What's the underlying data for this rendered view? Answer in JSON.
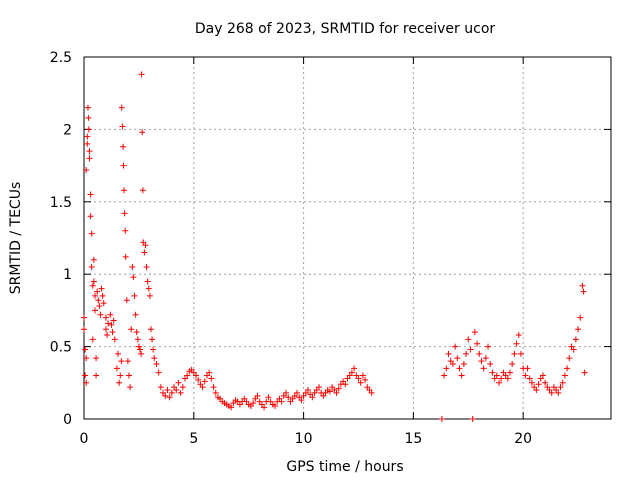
{
  "chart_data": {
    "type": "scatter",
    "title": "Day 268 of 2023, SRMTID for receiver ucor",
    "xlabel": "GPS time / hours",
    "ylabel": "SRMTID / TECUs",
    "xlim": [
      0,
      24
    ],
    "ylim": [
      0,
      2.5
    ],
    "xticks": [
      0,
      5,
      10,
      15,
      20
    ],
    "xtick_labels": [
      "0",
      "5",
      "10",
      "15",
      "20"
    ],
    "yticks": [
      0,
      0.5,
      1,
      1.5,
      2,
      2.5
    ],
    "ytick_labels": [
      "0",
      "0.5",
      "1",
      "1.5",
      "2",
      "2.5"
    ],
    "grid": true,
    "marker": "+",
    "series": [
      {
        "name": "SRMTID",
        "color": "#ff0000",
        "points": [
          [
            0.0,
            0.7
          ],
          [
            0.0,
            0.62
          ],
          [
            0.05,
            0.48
          ],
          [
            0.05,
            0.3
          ],
          [
            0.1,
            0.25
          ],
          [
            0.1,
            0.42
          ],
          [
            0.1,
            1.72
          ],
          [
            0.15,
            1.95
          ],
          [
            0.15,
            1.9
          ],
          [
            0.18,
            2.15
          ],
          [
            0.2,
            2.08
          ],
          [
            0.22,
            2.0
          ],
          [
            0.25,
            1.85
          ],
          [
            0.25,
            1.8
          ],
          [
            0.3,
            1.55
          ],
          [
            0.3,
            1.4
          ],
          [
            0.35,
            1.28
          ],
          [
            0.35,
            1.05
          ],
          [
            0.4,
            0.92
          ],
          [
            0.4,
            0.55
          ],
          [
            0.45,
            0.95
          ],
          [
            0.45,
            1.1
          ],
          [
            0.5,
            0.75
          ],
          [
            0.5,
            0.85
          ],
          [
            0.55,
            0.42
          ],
          [
            0.55,
            0.3
          ],
          [
            0.6,
            0.88
          ],
          [
            0.65,
            0.82
          ],
          [
            0.7,
            0.78
          ],
          [
            0.75,
            0.72
          ],
          [
            0.8,
            0.9
          ],
          [
            0.85,
            0.85
          ],
          [
            0.9,
            0.8
          ],
          [
            1.0,
            0.7
          ],
          [
            1.0,
            0.62
          ],
          [
            1.05,
            0.58
          ],
          [
            1.1,
            0.66
          ],
          [
            1.2,
            0.72
          ],
          [
            1.25,
            0.65
          ],
          [
            1.3,
            0.6
          ],
          [
            1.35,
            0.68
          ],
          [
            1.4,
            0.55
          ],
          [
            1.5,
            0.35
          ],
          [
            1.55,
            0.45
          ],
          [
            1.6,
            0.25
          ],
          [
            1.65,
            0.3
          ],
          [
            1.7,
            0.4
          ],
          [
            1.72,
            2.15
          ],
          [
            1.75,
            2.02
          ],
          [
            1.78,
            1.88
          ],
          [
            1.8,
            1.75
          ],
          [
            1.82,
            1.58
          ],
          [
            1.85,
            1.42
          ],
          [
            1.88,
            1.3
          ],
          [
            1.9,
            1.12
          ],
          [
            1.95,
            0.82
          ],
          [
            2.0,
            0.4
          ],
          [
            2.05,
            0.3
          ],
          [
            2.1,
            0.22
          ],
          [
            2.15,
            0.62
          ],
          [
            2.2,
            1.05
          ],
          [
            2.25,
            0.98
          ],
          [
            2.3,
            0.85
          ],
          [
            2.35,
            0.72
          ],
          [
            2.4,
            0.6
          ],
          [
            2.45,
            0.55
          ],
          [
            2.5,
            0.5
          ],
          [
            2.55,
            0.48
          ],
          [
            2.6,
            0.45
          ],
          [
            2.62,
            2.38
          ],
          [
            2.65,
            1.98
          ],
          [
            2.68,
            1.58
          ],
          [
            2.7,
            1.22
          ],
          [
            2.75,
            1.15
          ],
          [
            2.8,
            1.2
          ],
          [
            2.85,
            1.05
          ],
          [
            2.9,
            0.95
          ],
          [
            2.95,
            0.9
          ],
          [
            3.0,
            0.85
          ],
          [
            3.05,
            0.62
          ],
          [
            3.1,
            0.55
          ],
          [
            3.15,
            0.48
          ],
          [
            3.2,
            0.42
          ],
          [
            3.3,
            0.38
          ],
          [
            3.4,
            0.32
          ],
          [
            3.5,
            0.22
          ],
          [
            3.6,
            0.18
          ],
          [
            3.7,
            0.16
          ],
          [
            3.8,
            0.2
          ],
          [
            3.9,
            0.15
          ],
          [
            4.0,
            0.18
          ],
          [
            4.1,
            0.22
          ],
          [
            4.2,
            0.2
          ],
          [
            4.3,
            0.25
          ],
          [
            4.4,
            0.18
          ],
          [
            4.5,
            0.22
          ],
          [
            4.6,
            0.28
          ],
          [
            4.7,
            0.3
          ],
          [
            4.8,
            0.33
          ],
          [
            4.9,
            0.34
          ],
          [
            5.0,
            0.32
          ],
          [
            5.1,
            0.3
          ],
          [
            5.2,
            0.27
          ],
          [
            5.3,
            0.24
          ],
          [
            5.4,
            0.22
          ],
          [
            5.5,
            0.26
          ],
          [
            5.6,
            0.3
          ],
          [
            5.7,
            0.32
          ],
          [
            5.8,
            0.28
          ],
          [
            5.9,
            0.22
          ],
          [
            6.0,
            0.18
          ],
          [
            6.1,
            0.15
          ],
          [
            6.2,
            0.14
          ],
          [
            6.3,
            0.12
          ],
          [
            6.4,
            0.11
          ],
          [
            6.5,
            0.1
          ],
          [
            6.6,
            0.09
          ],
          [
            6.7,
            0.08
          ],
          [
            6.8,
            0.11
          ],
          [
            6.9,
            0.13
          ],
          [
            7.0,
            0.12
          ],
          [
            7.1,
            0.1
          ],
          [
            7.2,
            0.12
          ],
          [
            7.3,
            0.14
          ],
          [
            7.4,
            0.12
          ],
          [
            7.5,
            0.1
          ],
          [
            7.6,
            0.09
          ],
          [
            7.7,
            0.11
          ],
          [
            7.8,
            0.14
          ],
          [
            7.9,
            0.16
          ],
          [
            8.0,
            0.12
          ],
          [
            8.1,
            0.1
          ],
          [
            8.2,
            0.08
          ],
          [
            8.3,
            0.12
          ],
          [
            8.4,
            0.15
          ],
          [
            8.5,
            0.12
          ],
          [
            8.6,
            0.1
          ],
          [
            8.7,
            0.09
          ],
          [
            8.8,
            0.12
          ],
          [
            8.9,
            0.14
          ],
          [
            9.0,
            0.12
          ],
          [
            9.1,
            0.16
          ],
          [
            9.2,
            0.18
          ],
          [
            9.3,
            0.15
          ],
          [
            9.4,
            0.12
          ],
          [
            9.5,
            0.14
          ],
          [
            9.6,
            0.16
          ],
          [
            9.7,
            0.18
          ],
          [
            9.8,
            0.15
          ],
          [
            9.9,
            0.13
          ],
          [
            10.0,
            0.16
          ],
          [
            10.1,
            0.18
          ],
          [
            10.2,
            0.2
          ],
          [
            10.3,
            0.17
          ],
          [
            10.4,
            0.15
          ],
          [
            10.5,
            0.18
          ],
          [
            10.6,
            0.2
          ],
          [
            10.7,
            0.22
          ],
          [
            10.8,
            0.18
          ],
          [
            10.9,
            0.16
          ],
          [
            11.0,
            0.18
          ],
          [
            11.1,
            0.2
          ],
          [
            11.2,
            0.19
          ],
          [
            11.3,
            0.22
          ],
          [
            11.4,
            0.2
          ],
          [
            11.5,
            0.18
          ],
          [
            11.6,
            0.21
          ],
          [
            11.7,
            0.24
          ],
          [
            11.8,
            0.26
          ],
          [
            11.9,
            0.24
          ],
          [
            12.0,
            0.28
          ],
          [
            12.1,
            0.3
          ],
          [
            12.2,
            0.32
          ],
          [
            12.3,
            0.35
          ],
          [
            12.4,
            0.3
          ],
          [
            12.5,
            0.28
          ],
          [
            12.6,
            0.25
          ],
          [
            12.7,
            0.3
          ],
          [
            12.8,
            0.27
          ],
          [
            12.9,
            0.22
          ],
          [
            13.0,
            0.2
          ],
          [
            13.1,
            0.18
          ],
          [
            16.3,
            0.0
          ],
          [
            16.4,
            0.3
          ],
          [
            16.5,
            0.35
          ],
          [
            16.6,
            0.45
          ],
          [
            16.7,
            0.4
          ],
          [
            16.8,
            0.38
          ],
          [
            16.9,
            0.5
          ],
          [
            17.0,
            0.42
          ],
          [
            17.1,
            0.35
          ],
          [
            17.2,
            0.3
          ],
          [
            17.3,
            0.38
          ],
          [
            17.4,
            0.45
          ],
          [
            17.5,
            0.55
          ],
          [
            17.6,
            0.48
          ],
          [
            17.7,
            0.0
          ],
          [
            17.8,
            0.6
          ],
          [
            17.9,
            0.52
          ],
          [
            18.0,
            0.45
          ],
          [
            18.1,
            0.4
          ],
          [
            18.2,
            0.35
          ],
          [
            18.3,
            0.42
          ],
          [
            18.4,
            0.5
          ],
          [
            18.5,
            0.38
          ],
          [
            18.6,
            0.32
          ],
          [
            18.7,
            0.28
          ],
          [
            18.8,
            0.3
          ],
          [
            18.9,
            0.25
          ],
          [
            19.0,
            0.28
          ],
          [
            19.1,
            0.32
          ],
          [
            19.2,
            0.3
          ],
          [
            19.3,
            0.28
          ],
          [
            19.4,
            0.32
          ],
          [
            19.5,
            0.38
          ],
          [
            19.6,
            0.45
          ],
          [
            19.7,
            0.52
          ],
          [
            19.8,
            0.58
          ],
          [
            19.9,
            0.45
          ],
          [
            20.0,
            0.35
          ],
          [
            20.1,
            0.3
          ],
          [
            20.2,
            0.35
          ],
          [
            20.3,
            0.28
          ],
          [
            20.4,
            0.25
          ],
          [
            20.5,
            0.22
          ],
          [
            20.6,
            0.2
          ],
          [
            20.7,
            0.24
          ],
          [
            20.8,
            0.28
          ],
          [
            20.9,
            0.3
          ],
          [
            21.0,
            0.25
          ],
          [
            21.1,
            0.22
          ],
          [
            21.2,
            0.2
          ],
          [
            21.3,
            0.18
          ],
          [
            21.4,
            0.22
          ],
          [
            21.5,
            0.2
          ],
          [
            21.6,
            0.18
          ],
          [
            21.7,
            0.22
          ],
          [
            21.8,
            0.25
          ],
          [
            21.9,
            0.3
          ],
          [
            22.0,
            0.35
          ],
          [
            22.1,
            0.42
          ],
          [
            22.2,
            0.5
          ],
          [
            22.3,
            0.48
          ],
          [
            22.4,
            0.55
          ],
          [
            22.5,
            0.62
          ],
          [
            22.6,
            0.7
          ],
          [
            22.7,
            0.92
          ],
          [
            22.75,
            0.88
          ],
          [
            22.8,
            0.32
          ]
        ]
      }
    ]
  }
}
